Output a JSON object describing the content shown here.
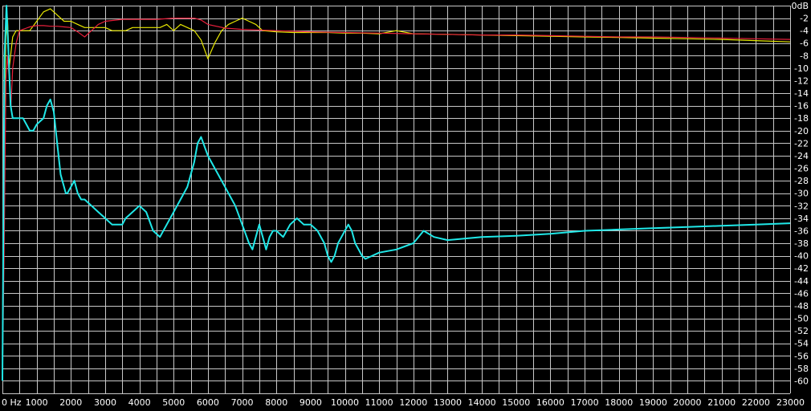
{
  "chart_data": {
    "type": "line",
    "xlabel": "",
    "ylabel": "",
    "xlim": [
      0,
      23000
    ],
    "ylim": [
      -62,
      0
    ],
    "x_ticks": [
      0,
      1000,
      2000,
      3000,
      4000,
      5000,
      6000,
      7000,
      8000,
      9000,
      10000,
      11000,
      12000,
      13000,
      14000,
      15000,
      16000,
      17000,
      18000,
      19000,
      20000,
      21000,
      22000,
      23000
    ],
    "x_tick_labels": [
      "0 Hz",
      "1000",
      "2000",
      "3000",
      "4000",
      "5000",
      "6000",
      "7000",
      "8000",
      "9000",
      "10000",
      "11000",
      "12000",
      "13000",
      "14000",
      "15000",
      "16000",
      "17000",
      "18000",
      "19000",
      "20000",
      "21000",
      "22000",
      "23000"
    ],
    "y_ticks": [
      0,
      -2,
      -4,
      -6,
      -8,
      -10,
      -12,
      -14,
      -16,
      -18,
      -20,
      -22,
      -24,
      -26,
      -28,
      -30,
      -32,
      -34,
      -36,
      -38,
      -40,
      -42,
      -44,
      -46,
      -48,
      -50,
      -52,
      -54,
      -56,
      -58,
      -60
    ],
    "y_tick_labels": [
      "0dB",
      "-2",
      "-4",
      "-6",
      "-8",
      "-10",
      "-12",
      "-14",
      "-16",
      "-18",
      "-20",
      "-22",
      "-24",
      "-26",
      "-28",
      "-30",
      "-32",
      "-34",
      "-36",
      "-38",
      "-40",
      "-42",
      "-44",
      "-46",
      "-48",
      "-50",
      "-52",
      "-54",
      "-56",
      "-58",
      "-60"
    ],
    "grid": true,
    "background": "#000000",
    "grid_color": "#c8c8c8",
    "series": [
      {
        "color": "#e8e800",
        "x": [
          0,
          50,
          100,
          150,
          200,
          300,
          400,
          500,
          600,
          700,
          800,
          1000,
          1200,
          1400,
          1600,
          1800,
          2000,
          2200,
          2400,
          2600,
          2800,
          3000,
          3200,
          3400,
          3600,
          3800,
          4000,
          4200,
          4400,
          4600,
          4800,
          5000,
          5200,
          5400,
          5600,
          5800,
          6000,
          6200,
          6400,
          6600,
          6800,
          7000,
          7200,
          7400,
          7600,
          8000,
          8500,
          9000,
          9500,
          10000,
          10500,
          11000,
          11500,
          12000,
          13000,
          14000,
          15000,
          16000,
          17000,
          18000,
          19000,
          20000,
          21000,
          22000,
          23000
        ],
        "y": [
          -56,
          -20,
          -5,
          -2,
          -10,
          -5,
          -4,
          -4,
          -4,
          -4,
          -4,
          -2.5,
          -1,
          -0.5,
          -1.5,
          -2.5,
          -2.5,
          -3,
          -3.5,
          -3.5,
          -3.5,
          -3.5,
          -4,
          -4,
          -4,
          -3.5,
          -3.5,
          -3.5,
          -3.5,
          -3.5,
          -3,
          -4,
          -3,
          -3.5,
          -4,
          -5.5,
          -8.5,
          -6,
          -4,
          -3,
          -2.5,
          -2,
          -2.5,
          -3,
          -4,
          -4.2,
          -4.3,
          -4.3,
          -4.3,
          -4.4,
          -4.4,
          -4.5,
          -4,
          -4.5,
          -4.6,
          -4.7,
          -4.8,
          -4.9,
          -5,
          -5.1,
          -5.2,
          -5.3,
          -5.4,
          -5.6,
          -5.8
        ]
      },
      {
        "color": "#e8203c",
        "x": [
          0,
          50,
          100,
          150,
          200,
          250,
          300,
          400,
          500,
          600,
          700,
          800,
          1000,
          1200,
          1400,
          1600,
          1800,
          2000,
          2200,
          2400,
          2600,
          2800,
          3000,
          3500,
          4000,
          4500,
          5000,
          5200,
          5400,
          5600,
          5800,
          6000,
          6500,
          7000,
          8000,
          9000,
          10000,
          11000,
          12000,
          13000,
          14000,
          15000,
          16000,
          17000,
          18000,
          19000,
          20000,
          21000,
          22000,
          23000
        ],
        "y": [
          -60,
          -40,
          -12,
          -8,
          -12,
          -16,
          -10,
          -6,
          -4,
          -3.8,
          -3.6,
          -3.4,
          -3.2,
          -3.2,
          -3.3,
          -3.3,
          -3.4,
          -3.5,
          -4.2,
          -5,
          -4,
          -3,
          -2.5,
          -2.2,
          -2.2,
          -2.2,
          -2,
          -2,
          -2,
          -2,
          -2.3,
          -3,
          -3.6,
          -3.8,
          -4,
          -4.2,
          -4.3,
          -4.4,
          -4.5,
          -4.6,
          -4.7,
          -4.7,
          -4.8,
          -4.9,
          -5,
          -5,
          -5.1,
          -5.2,
          -5.3,
          -5.4
        ]
      },
      {
        "color": "#20e8e8",
        "x": [
          0,
          60,
          120,
          180,
          240,
          300,
          400,
          500,
          600,
          700,
          800,
          900,
          1000,
          1100,
          1200,
          1300,
          1400,
          1500,
          1600,
          1700,
          1800,
          1850,
          1900,
          2000,
          2100,
          2200,
          2300,
          2400,
          2600,
          2800,
          3000,
          3200,
          3400,
          3500,
          3600,
          3800,
          4000,
          4200,
          4400,
          4600,
          4800,
          5000,
          5200,
          5400,
          5600,
          5700,
          5800,
          6000,
          6200,
          6400,
          6600,
          6800,
          7000,
          7200,
          7300,
          7400,
          7500,
          7600,
          7700,
          7800,
          7900,
          8000,
          8200,
          8400,
          8600,
          8800,
          9000,
          9200,
          9400,
          9500,
          9600,
          9700,
          9800,
          9900,
          10000,
          10100,
          10200,
          10300,
          10400,
          10500,
          10600,
          10800,
          11000,
          11500,
          12000,
          12300,
          12600,
          13000,
          14000,
          15000,
          16000,
          17000,
          18000,
          19000,
          20000,
          21000,
          22000,
          23000
        ],
        "y": [
          -60,
          -8,
          0,
          -8,
          -16,
          -18,
          -18,
          -18,
          -18,
          -19,
          -20,
          -20,
          -19,
          -18.5,
          -18,
          -16,
          -15,
          -17,
          -22,
          -27,
          -29,
          -30,
          -30,
          -29,
          -28,
          -30,
          -31,
          -31,
          -32,
          -33,
          -34,
          -35,
          -35,
          -35,
          -34,
          -33,
          -32,
          -33,
          -36,
          -37,
          -35,
          -33,
          -31,
          -29,
          -25,
          -22,
          -21,
          -24,
          -26,
          -28,
          -30,
          -32,
          -35,
          -38,
          -39,
          -37,
          -35,
          -37,
          -39,
          -37,
          -36,
          -36,
          -37,
          -35,
          -34,
          -35,
          -35,
          -36,
          -38,
          -40,
          -41,
          -40,
          -38,
          -37,
          -36,
          -35,
          -36,
          -38,
          -39,
          -40,
          -40.5,
          -40,
          -39.5,
          -39,
          -38,
          -36,
          -37,
          -37.5,
          -37,
          -36.8,
          -36.5,
          -36,
          -35.8,
          -35.6,
          -35.4,
          -35.2,
          -35,
          -34.8
        ]
      }
    ]
  }
}
